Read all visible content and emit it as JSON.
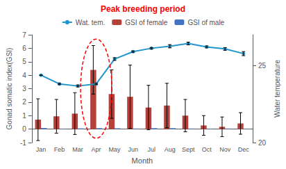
{
  "chart_data": {
    "type": "bar",
    "title": "Peak breeding period",
    "xlabel": "Month",
    "ylabel": "Gonad somatic index(GSI)",
    "y2label": "Water temperature",
    "categories": [
      "Jan",
      "Feb",
      "Mar",
      "Apr",
      "May",
      "Jun",
      "Jul",
      "Aug",
      "Sept",
      "Oct",
      "Nov",
      "Dec"
    ],
    "series": [
      {
        "name": "Wat. tem.",
        "type": "line",
        "marker": "circle",
        "color": "#2196cc",
        "values": [
          4.0,
          3.35,
          3.2,
          3.35,
          5.2,
          5.75,
          6.0,
          6.15,
          6.35,
          6.1,
          5.95,
          5.6
        ],
        "errors": [
          0.0,
          0.05,
          0.07,
          0.05,
          0.1,
          0.05,
          0.05,
          0.12,
          0.1,
          0.07,
          0.1,
          0.15
        ]
      },
      {
        "name": "GSI of female",
        "type": "bar",
        "color": "#b5413a",
        "values": [
          0.7,
          0.95,
          1.15,
          4.4,
          2.6,
          2.4,
          1.6,
          1.75,
          1.0,
          0.27,
          0.17,
          0.42
        ],
        "errors": [
          1.55,
          1.25,
          1.55,
          1.8,
          1.8,
          2.35,
          1.65,
          1.65,
          1.2,
          0.73,
          0.73,
          0.8
        ]
      },
      {
        "name": "GSI of male",
        "type": "bar",
        "color": "#4472c4",
        "values": [
          0.08,
          0.03,
          0.05,
          0.07,
          0.06,
          0.04,
          0.07,
          0.07,
          0.04,
          0.03,
          0.04,
          0.03
        ]
      }
    ],
    "ylim": [
      -1,
      7
    ],
    "yticks": [
      -1,
      0,
      1,
      2,
      3,
      4,
      5,
      6,
      7
    ],
    "y2lim": [
      20,
      27
    ],
    "y2ticks": [
      20,
      25
    ],
    "grid": false,
    "legend": "top"
  }
}
